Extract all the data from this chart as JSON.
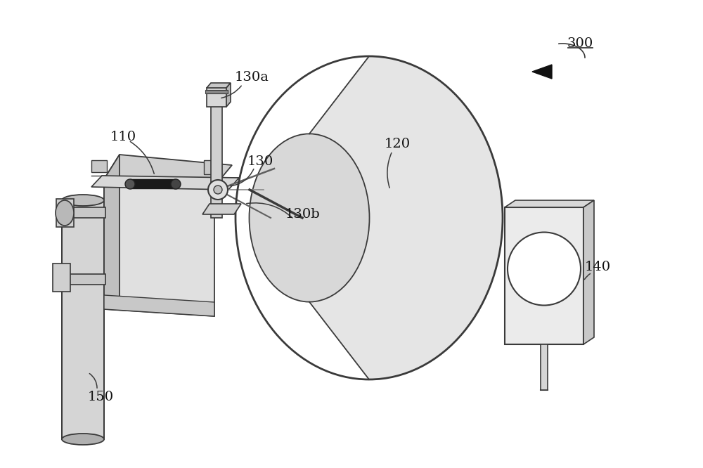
{
  "bg_color": "#ffffff",
  "line_color": "#3a3a3a",
  "light_line_color": "#888888",
  "label_fontsize": 14,
  "figsize": [
    10.0,
    6.66
  ],
  "dpi": 100
}
